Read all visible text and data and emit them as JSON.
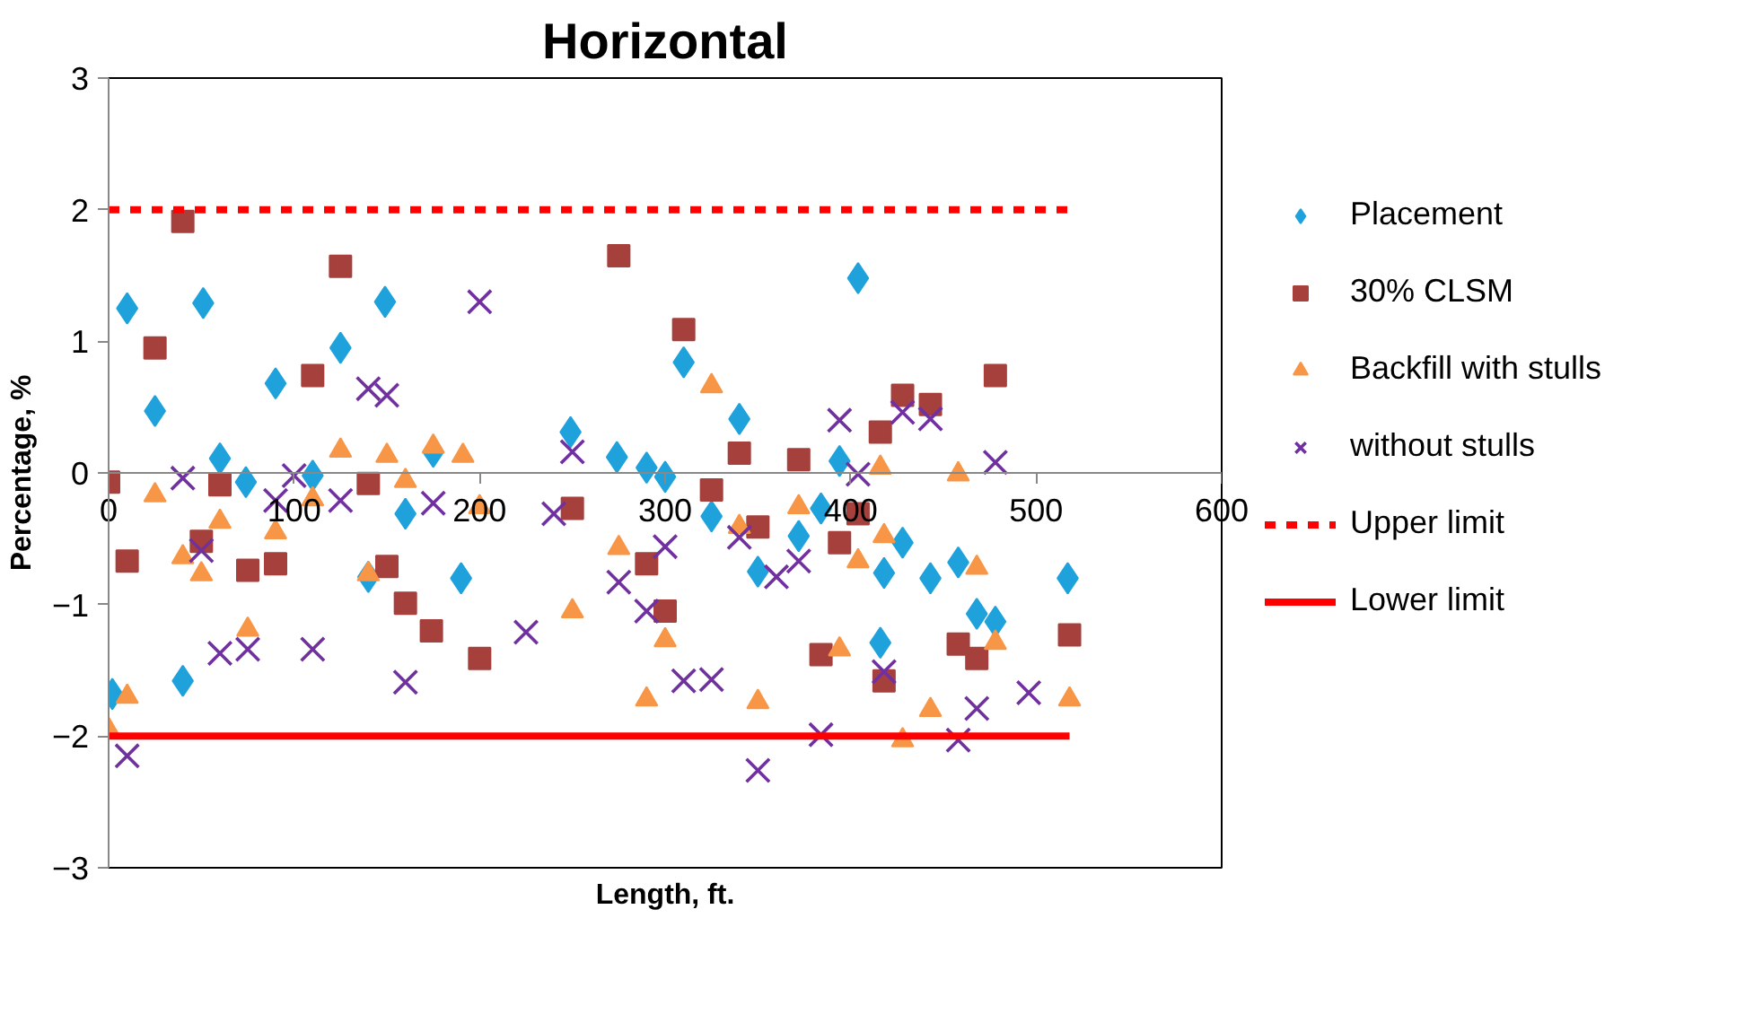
{
  "chart_data": {
    "type": "scatter",
    "title": "Horizontal",
    "xlabel": "Length, ft.",
    "ylabel": "Percentage, %",
    "xlim": [
      0,
      600
    ],
    "xticks": [
      0,
      100,
      200,
      300,
      400,
      500,
      600
    ],
    "ylim": [
      -3,
      3
    ],
    "yticks": [
      -3,
      -2,
      -1,
      0,
      1,
      2,
      3
    ],
    "grid": false,
    "legend": "right",
    "series": [
      {
        "name": "Placement",
        "color": "#1fa2dc",
        "marker": "diamond",
        "x": [
          2,
          10,
          25,
          40,
          51,
          60,
          74,
          90,
          110,
          125,
          140,
          149,
          160,
          175,
          190,
          249,
          274,
          290,
          300,
          310,
          325,
          340,
          350,
          372,
          384,
          394,
          404,
          416,
          418,
          428,
          443,
          458,
          468,
          478,
          517
        ],
        "values": [
          -1.68,
          1.25,
          0.47,
          -1.58,
          1.29,
          0.11,
          -0.07,
          0.68,
          -0.02,
          0.95,
          -0.79,
          1.3,
          -0.31,
          0.16,
          -0.8,
          0.31,
          0.12,
          0.04,
          -0.03,
          0.84,
          -0.33,
          0.41,
          -0.75,
          -0.48,
          -0.27,
          0.09,
          1.48,
          -1.29,
          -0.76,
          -0.53,
          -0.8,
          -0.68,
          -1.07,
          -1.13,
          -0.8
        ]
      },
      {
        "name": "30% CLSM",
        "color": "#a5403c",
        "marker": "square",
        "x": [
          0,
          10,
          25,
          40,
          50,
          60,
          75,
          90,
          110,
          125,
          140,
          150,
          160,
          174,
          200,
          250,
          275,
          290,
          300,
          310,
          325,
          340,
          350,
          372,
          384,
          394,
          404,
          416,
          418,
          428,
          443,
          458,
          468,
          478,
          518
        ],
        "values": [
          -0.07,
          -0.67,
          0.95,
          1.91,
          -0.52,
          -0.09,
          -0.74,
          -0.69,
          0.74,
          1.57,
          -0.08,
          -0.71,
          -0.99,
          -1.2,
          -1.41,
          -0.27,
          1.65,
          -0.69,
          -1.05,
          1.09,
          -0.13,
          0.15,
          -0.41,
          0.1,
          -1.38,
          -0.53,
          -0.31,
          0.31,
          -1.58,
          0.59,
          0.52,
          -1.3,
          -1.41,
          0.74,
          -1.23
        ]
      },
      {
        "name": "Backfill with stulls",
        "color": "#f79646",
        "marker": "triangle",
        "x": [
          0,
          10,
          25,
          40,
          50,
          60,
          75,
          90,
          110,
          125,
          140,
          150,
          160,
          175,
          191,
          200,
          250,
          275,
          290,
          300,
          325,
          340,
          350,
          372,
          394,
          404,
          416,
          418,
          428,
          443,
          458,
          468,
          478,
          518
        ],
        "values": [
          -1.95,
          -1.7,
          -0.17,
          -0.64,
          -0.77,
          -0.37,
          -1.19,
          -0.45,
          -0.2,
          0.17,
          -0.77,
          0.13,
          -0.06,
          0.2,
          0.13,
          -0.26,
          -1.05,
          -0.57,
          -1.72,
          -1.27,
          0.66,
          -0.41,
          -1.74,
          -0.26,
          -1.34,
          -0.67,
          0.04,
          -0.48,
          -2.03,
          -1.8,
          -0.01,
          -0.72,
          -1.29,
          -1.72
        ]
      },
      {
        "name": "without stulls",
        "color": "#7030a0",
        "marker": "cross",
        "x": [
          10,
          40,
          50,
          60,
          75,
          90,
          100,
          110,
          125,
          140,
          150,
          160,
          175,
          200,
          225,
          240,
          250,
          275,
          290,
          300,
          310,
          325,
          340,
          350,
          360,
          372,
          384,
          394,
          404,
          418,
          428,
          443,
          458,
          468,
          478,
          496
        ],
        "values": [
          -2.15,
          -0.04,
          -0.59,
          -1.37,
          -1.34,
          -0.21,
          -0.02,
          -1.34,
          -0.21,
          0.64,
          0.59,
          -1.59,
          -0.23,
          1.3,
          -1.21,
          -0.31,
          0.16,
          -0.83,
          -1.05,
          -0.56,
          -1.58,
          -1.57,
          -0.49,
          -2.26,
          -0.79,
          -0.67,
          -1.99,
          0.4,
          -0.01,
          -1.51,
          0.46,
          0.41,
          -2.03,
          -1.79,
          0.08,
          -1.67
        ]
      },
      {
        "name": "Upper limit",
        "type": "line",
        "color": "#ff0000",
        "line_style": "dashed",
        "marker": "none",
        "x": [
          0,
          518
        ],
        "values": [
          2,
          2
        ]
      },
      {
        "name": "Lower limit",
        "type": "line",
        "color": "#ff0000",
        "line_style": "solid",
        "marker": "none",
        "x": [
          0,
          518
        ],
        "values": [
          -2,
          -2
        ]
      }
    ]
  }
}
